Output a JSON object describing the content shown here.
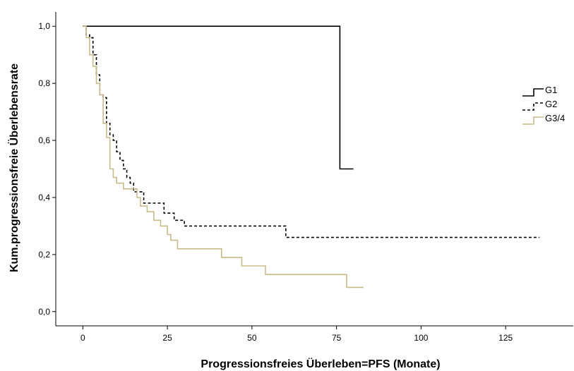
{
  "chart_data": {
    "type": "line",
    "step": true,
    "xlabel": "Progressionsfreies Überleben=PFS (Monate)",
    "ylabel": "Kum.progressionsfreie Überlebensrate",
    "xlim": [
      -8,
      145
    ],
    "ylim": [
      -0.05,
      1.05
    ],
    "xticks": [
      {
        "value": 0,
        "label": "0"
      },
      {
        "value": 25,
        "label": "25"
      },
      {
        "value": 50,
        "label": "50"
      },
      {
        "value": 75,
        "label": "75"
      },
      {
        "value": 100,
        "label": "100"
      },
      {
        "value": 125,
        "label": "125"
      }
    ],
    "yticks": [
      {
        "value": 0,
        "label": "0,0"
      },
      {
        "value": 0.2,
        "label": "0,2"
      },
      {
        "value": 0.4,
        "label": "0,4"
      },
      {
        "value": 0.6,
        "label": "0,6"
      },
      {
        "value": 0.8,
        "label": "0,8"
      },
      {
        "value": 1.0,
        "label": "1,0"
      }
    ],
    "grid": false,
    "legend_position": "right",
    "series": [
      {
        "name": "G1",
        "color": "#000000",
        "dash": "solid",
        "points": [
          [
            0,
            1.0
          ],
          [
            76,
            1.0
          ],
          [
            76,
            0.5
          ],
          [
            80,
            0.5
          ]
        ]
      },
      {
        "name": "G2",
        "color": "#000000",
        "dash": "dashed",
        "points": [
          [
            0,
            1.0
          ],
          [
            1,
            1.0
          ],
          [
            1,
            0.97
          ],
          [
            2,
            0.97
          ],
          [
            2,
            0.96
          ],
          [
            3,
            0.96
          ],
          [
            3,
            0.9
          ],
          [
            4,
            0.9
          ],
          [
            4,
            0.83
          ],
          [
            5,
            0.83
          ],
          [
            5,
            0.76
          ],
          [
            6,
            0.76
          ],
          [
            6,
            0.75
          ],
          [
            7,
            0.75
          ],
          [
            7,
            0.66
          ],
          [
            8,
            0.66
          ],
          [
            8,
            0.62
          ],
          [
            9,
            0.62
          ],
          [
            9,
            0.6
          ],
          [
            10,
            0.6
          ],
          [
            10,
            0.56
          ],
          [
            11,
            0.56
          ],
          [
            11,
            0.53
          ],
          [
            12,
            0.53
          ],
          [
            12,
            0.5
          ],
          [
            13,
            0.5
          ],
          [
            13,
            0.47
          ],
          [
            14,
            0.47
          ],
          [
            14,
            0.45
          ],
          [
            15,
            0.45
          ],
          [
            15,
            0.42
          ],
          [
            18,
            0.42
          ],
          [
            18,
            0.38
          ],
          [
            24,
            0.38
          ],
          [
            24,
            0.345
          ],
          [
            27,
            0.345
          ],
          [
            27,
            0.32
          ],
          [
            30,
            0.32
          ],
          [
            30,
            0.3
          ],
          [
            60,
            0.3
          ],
          [
            60,
            0.26
          ],
          [
            135,
            0.26
          ]
        ]
      },
      {
        "name": "G3/4",
        "color": "#c8bb8a",
        "dash": "solid",
        "points": [
          [
            0,
            1.0
          ],
          [
            1,
            1.0
          ],
          [
            1,
            0.96
          ],
          [
            2,
            0.96
          ],
          [
            2,
            0.9
          ],
          [
            3,
            0.9
          ],
          [
            3,
            0.86
          ],
          [
            4,
            0.86
          ],
          [
            4,
            0.8
          ],
          [
            5,
            0.8
          ],
          [
            5,
            0.76
          ],
          [
            6,
            0.76
          ],
          [
            6,
            0.66
          ],
          [
            7,
            0.66
          ],
          [
            7,
            0.61
          ],
          [
            8,
            0.61
          ],
          [
            8,
            0.5
          ],
          [
            9,
            0.5
          ],
          [
            9,
            0.47
          ],
          [
            10,
            0.47
          ],
          [
            10,
            0.45
          ],
          [
            12,
            0.45
          ],
          [
            12,
            0.43
          ],
          [
            16,
            0.43
          ],
          [
            16,
            0.4
          ],
          [
            17,
            0.4
          ],
          [
            17,
            0.37
          ],
          [
            19,
            0.37
          ],
          [
            19,
            0.35
          ],
          [
            21,
            0.35
          ],
          [
            21,
            0.32
          ],
          [
            23,
            0.32
          ],
          [
            23,
            0.3
          ],
          [
            25,
            0.3
          ],
          [
            25,
            0.27
          ],
          [
            26,
            0.27
          ],
          [
            26,
            0.25
          ],
          [
            28,
            0.25
          ],
          [
            28,
            0.22
          ],
          [
            41,
            0.22
          ],
          [
            41,
            0.19
          ],
          [
            47,
            0.19
          ],
          [
            47,
            0.16
          ],
          [
            54,
            0.16
          ],
          [
            54,
            0.13
          ],
          [
            78,
            0.13
          ],
          [
            78,
            0.085
          ],
          [
            83,
            0.085
          ]
        ]
      }
    ]
  }
}
